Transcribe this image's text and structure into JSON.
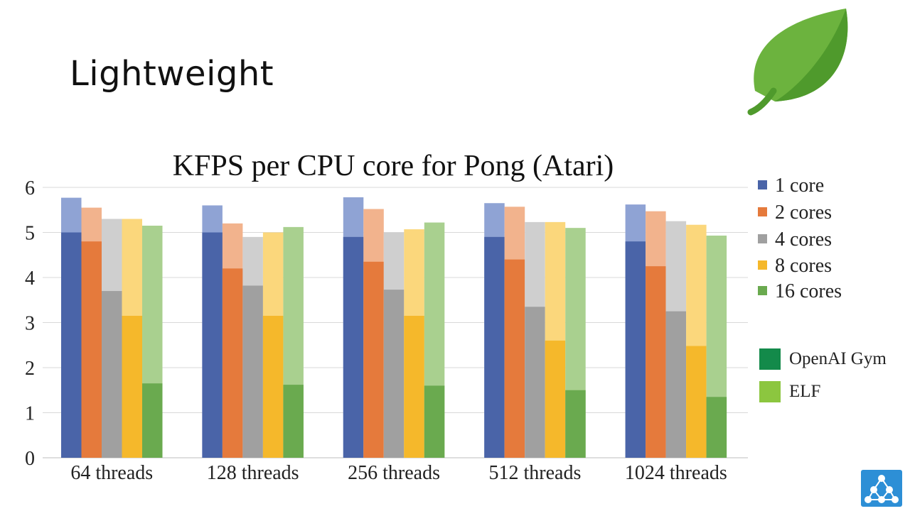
{
  "slide": {
    "title": "Lightweight"
  },
  "chart_data": {
    "type": "bar",
    "title": "KFPS per CPU core for Pong (Atari)",
    "xlabel": "",
    "ylabel": "",
    "ylim": [
      0,
      6
    ],
    "yticks": [
      "0",
      "1",
      "2",
      "3",
      "4",
      "5",
      "6"
    ],
    "categories": [
      "64 threads",
      "128 threads",
      "256 threads",
      "512 threads",
      "1024 threads"
    ],
    "series": [
      {
        "name": "1 core",
        "color": "#4a64a8",
        "light": "#8fa3d4",
        "openai_gym": [
          5.0,
          5.0,
          4.9,
          4.9,
          4.8
        ],
        "elf": [
          5.77,
          5.6,
          5.78,
          5.65,
          5.62
        ]
      },
      {
        "name": "2 cores",
        "color": "#e57a3c",
        "light": "#f2b38d",
        "openai_gym": [
          4.8,
          4.2,
          4.35,
          4.4,
          4.25
        ],
        "elf": [
          5.55,
          5.2,
          5.52,
          5.57,
          5.47
        ]
      },
      {
        "name": "4 cores",
        "color": "#a0a0a0",
        "light": "#cfcfcf",
        "openai_gym": [
          3.7,
          3.82,
          3.73,
          3.35,
          3.25
        ],
        "elf": [
          5.3,
          4.9,
          5.0,
          5.23,
          5.25
        ]
      },
      {
        "name": "8 cores",
        "color": "#f5b82b",
        "light": "#fbd77c",
        "openai_gym": [
          3.15,
          3.15,
          3.15,
          2.6,
          2.48
        ],
        "elf": [
          5.3,
          5.0,
          5.07,
          5.23,
          5.17
        ]
      },
      {
        "name": "16 cores",
        "color": "#6aaa4f",
        "light": "#a9d08f",
        "openai_gym": [
          1.65,
          1.62,
          1.6,
          1.5,
          1.35
        ],
        "elf": [
          5.15,
          5.12,
          5.22,
          5.1,
          4.93
        ]
      }
    ],
    "legend": {
      "position": "right",
      "framework_items": [
        {
          "name": "OpenAI Gym",
          "color": "#138a4a"
        },
        {
          "name": "ELF",
          "color": "#8cc63f"
        }
      ]
    }
  }
}
